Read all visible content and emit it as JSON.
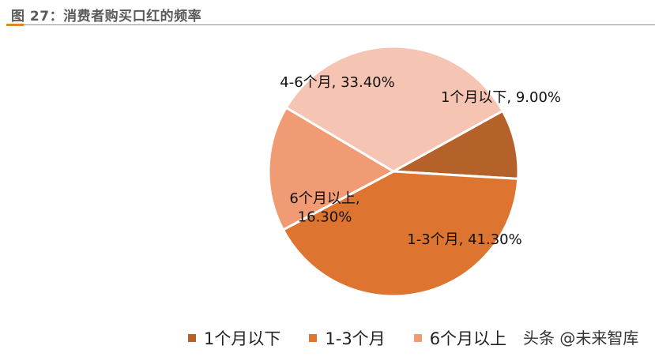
{
  "figure": {
    "title": "图 27：消费者购买口红的频率"
  },
  "watermark": "头条 @未来智库",
  "chart_data": {
    "type": "pie",
    "title": "",
    "slices": [
      {
        "name": "1个月以下",
        "value": 9.0,
        "label": "1个月以下, 9.00%",
        "color": "#b5612a"
      },
      {
        "name": "1-3个月",
        "value": 41.3,
        "label": "1-3个月, 41.30%",
        "color": "#dd7530"
      },
      {
        "name": "6个月以上",
        "value": 16.3,
        "label": "6个月以上,|16.30%",
        "color": "#f09b74"
      },
      {
        "name": "4-6个月",
        "value": 33.4,
        "label": "4-6个月, 33.40%",
        "color": "#f5c4b2"
      }
    ],
    "start_angle_deg": 61,
    "direction": "clockwise",
    "legend": {
      "position": "bottom",
      "entries": [
        {
          "label": "1个月以下",
          "color": "#b5612a"
        },
        {
          "label": "1-3个月",
          "color": "#dd7530"
        },
        {
          "label": "6个月以上",
          "color": "#f09b74"
        }
      ]
    }
  }
}
